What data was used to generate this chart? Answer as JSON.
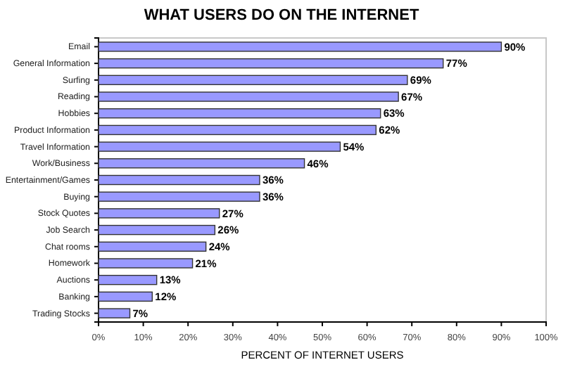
{
  "chart_data": {
    "type": "bar",
    "orientation": "horizontal",
    "title": "WHAT USERS DO ON THE INTERNET",
    "xlabel": "PERCENT OF INTERNET USERS",
    "categories": [
      "Email",
      "General Information",
      "Surfing",
      "Reading",
      "Hobbies",
      "Product Information",
      "Travel Information",
      "Work/Business",
      "Entertainment/Games",
      "Buying",
      "Stock Quotes",
      "Job Search",
      "Chat rooms",
      "Homework",
      "Auctions",
      "Banking",
      "Trading Stocks"
    ],
    "values": [
      90,
      77,
      69,
      67,
      63,
      62,
      54,
      46,
      36,
      36,
      27,
      26,
      24,
      21,
      13,
      12,
      7
    ],
    "value_labels": [
      "90%",
      "77%",
      "69%",
      "67%",
      "63%",
      "62%",
      "54%",
      "46%",
      "36%",
      "36%",
      "27%",
      "26%",
      "24%",
      "21%",
      "13%",
      "12%",
      "7%"
    ],
    "color": "#9999ff",
    "xlim": [
      0,
      100
    ],
    "xticks": [
      {
        "value": 0,
        "label": "0%"
      },
      {
        "value": 10,
        "label": "10%"
      },
      {
        "value": 20,
        "label": "20%"
      },
      {
        "value": 30,
        "label": "30%"
      },
      {
        "value": 40,
        "label": "40%"
      },
      {
        "value": 50,
        "label": "50%"
      },
      {
        "value": 60,
        "label": "60%"
      },
      {
        "value": 70,
        "label": "70%"
      },
      {
        "value": 80,
        "label": "80%"
      },
      {
        "value": 90,
        "label": "90%"
      },
      {
        "value": 100,
        "label": "100%"
      }
    ],
    "grid": false
  }
}
